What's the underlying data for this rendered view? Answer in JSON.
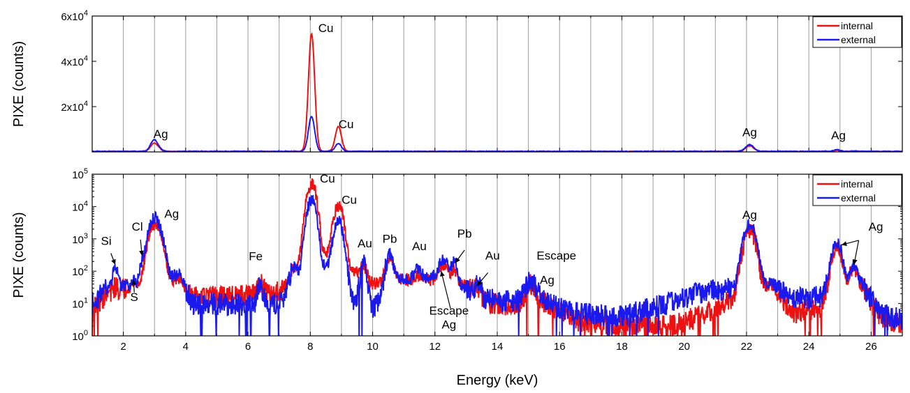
{
  "chart_data": [
    {
      "type": "line",
      "scale": "linear",
      "ylabel": "PIXE (counts)",
      "xlim": [
        1,
        27
      ],
      "ylim": [
        0,
        60000
      ],
      "yticks": [
        {
          "value": 20000,
          "mant": "2x10",
          "exp": "4"
        },
        {
          "value": 40000,
          "mant": "4x10",
          "exp": "4"
        },
        {
          "value": 60000,
          "mant": "6x10",
          "exp": "4"
        }
      ],
      "grid": "vertical lines every 1 keV",
      "legend_position": "top-right",
      "series": [
        {
          "name": "internal",
          "color": "#ee1111",
          "peaks": [
            [
              2.98,
              3500,
              0.11
            ],
            [
              3.15,
              700,
              0.1
            ],
            [
              8.04,
              52000,
              0.1
            ],
            [
              8.9,
              11000,
              0.1
            ],
            [
              22.1,
              2500,
              0.13
            ],
            [
              24.9,
              450,
              0.1
            ],
            [
              25.45,
              100,
              0.1
            ]
          ]
        },
        {
          "name": "external",
          "color": "#1a1aee",
          "peaks": [
            [
              2.98,
              5000,
              0.11
            ],
            [
              3.15,
              900,
              0.1
            ],
            [
              8.04,
              15500,
              0.1
            ],
            [
              8.9,
              3500,
              0.1
            ],
            [
              22.1,
              3000,
              0.13
            ],
            [
              24.9,
              750,
              0.1
            ],
            [
              25.45,
              140,
              0.1
            ]
          ]
        }
      ],
      "annotations": [
        {
          "text": "Cu",
          "x": 8.5,
          "y": 53000
        },
        {
          "text": "Cu",
          "x": 9.15,
          "y": 10500
        },
        {
          "text": "Ag",
          "x": 3.2,
          "y": 6200
        },
        {
          "text": "Ag",
          "x": 22.1,
          "y": 7000
        },
        {
          "text": "Ag",
          "x": 24.95,
          "y": 5500
        }
      ]
    },
    {
      "type": "line",
      "scale": "log",
      "xlabel": "Energy (keV)",
      "ylabel": "PIXE (counts)",
      "xlim": [
        1,
        27
      ],
      "ylim": [
        1,
        100000
      ],
      "xticks": [
        2,
        4,
        6,
        8,
        10,
        12,
        14,
        16,
        18,
        20,
        22,
        24,
        26
      ],
      "yticks": [
        {
          "value": 1,
          "mant": "10",
          "exp": "0"
        },
        {
          "value": 10,
          "mant": "10",
          "exp": "1"
        },
        {
          "value": 100,
          "mant": "10",
          "exp": "2"
        },
        {
          "value": 1000,
          "mant": "10",
          "exp": "3"
        },
        {
          "value": 10000,
          "mant": "10",
          "exp": "4"
        },
        {
          "value": 100000,
          "mant": "10",
          "exp": "5"
        }
      ],
      "grid": "vertical lines every 1 keV",
      "legend_position": "top-right",
      "series": [
        {
          "name": "internal",
          "color": "#ee1111",
          "baseline": [
            [
              1,
              8
            ],
            [
              1.5,
              20
            ],
            [
              2.3,
              35
            ],
            [
              2.9,
              40
            ],
            [
              3.8,
              60
            ],
            [
              4.2,
              15
            ],
            [
              6,
              17
            ],
            [
              6.9,
              22
            ],
            [
              7.3,
              40
            ],
            [
              7.7,
              180
            ],
            [
              8.6,
              400
            ],
            [
              9.3,
              120
            ],
            [
              10,
              40
            ],
            [
              10.8,
              60
            ],
            [
              11.5,
              50
            ],
            [
              12.3,
              60
            ],
            [
              13,
              35
            ],
            [
              13.6,
              12
            ],
            [
              14.3,
              8
            ],
            [
              15.5,
              10
            ],
            [
              16.5,
              3
            ],
            [
              18,
              2
            ],
            [
              19.5,
              2
            ],
            [
              20.5,
              4
            ],
            [
              21.3,
              10
            ],
            [
              22.8,
              40
            ],
            [
              23.5,
              5
            ],
            [
              24.4,
              8
            ],
            [
              24.7,
              30
            ],
            [
              25.7,
              30
            ],
            [
              26.3,
              4
            ],
            [
              27,
              2
            ]
          ],
          "peaks": [
            [
              1.74,
              10,
              0.06
            ],
            [
              2.31,
              8,
              0.05
            ],
            [
              2.62,
              15,
              0.07
            ],
            [
              2.98,
              2500,
              0.13
            ],
            [
              3.15,
              900,
              0.12
            ],
            [
              6.4,
              25,
              0.08
            ],
            [
              7.47,
              60,
              0.1
            ],
            [
              8.04,
              50000,
              0.11
            ],
            [
              8.9,
              10500,
              0.11
            ],
            [
              9.71,
              90,
              0.08
            ],
            [
              10.55,
              220,
              0.1
            ],
            [
              11.45,
              30,
              0.1
            ],
            [
              12.28,
              100,
              0.12
            ],
            [
              12.61,
              60,
              0.08
            ],
            [
              13.38,
              15,
              0.08
            ],
            [
              15.08,
              30,
              0.14
            ],
            [
              22.1,
              1900,
              0.14
            ],
            [
              24.9,
              500,
              0.12
            ],
            [
              25.45,
              90,
              0.1
            ]
          ]
        },
        {
          "name": "external",
          "color": "#1a1aee",
          "baseline": [
            [
              1,
              10
            ],
            [
              1.5,
              30
            ],
            [
              2.3,
              40
            ],
            [
              2.9,
              45
            ],
            [
              3.8,
              80
            ],
            [
              4.2,
              10
            ],
            [
              6,
              9
            ],
            [
              6.9,
              10
            ],
            [
              7.3,
              20
            ],
            [
              7.7,
              80
            ],
            [
              8.6,
              150
            ],
            [
              9.3,
              15
            ],
            [
              10,
              6
            ],
            [
              10.8,
              60
            ],
            [
              11.5,
              60
            ],
            [
              12.3,
              80
            ],
            [
              13,
              30
            ],
            [
              13.6,
              14
            ],
            [
              14.3,
              12
            ],
            [
              15.5,
              12
            ],
            [
              16.5,
              5
            ],
            [
              18,
              4
            ],
            [
              19.5,
              10
            ],
            [
              20.5,
              22
            ],
            [
              21.3,
              28
            ],
            [
              22.8,
              45
            ],
            [
              23.5,
              14
            ],
            [
              24.4,
              16
            ],
            [
              24.7,
              50
            ],
            [
              25.7,
              40
            ],
            [
              26.3,
              5
            ],
            [
              27,
              3
            ]
          ],
          "peaks": [
            [
              1.74,
              110,
              0.06
            ],
            [
              2.31,
              12,
              0.05
            ],
            [
              2.62,
              150,
              0.07
            ],
            [
              2.98,
              3800,
              0.13
            ],
            [
              3.15,
              1200,
              0.12
            ],
            [
              6.4,
              25,
              0.08
            ],
            [
              7.47,
              100,
              0.1
            ],
            [
              8.04,
              15000,
              0.11
            ],
            [
              8.9,
              3500,
              0.11
            ],
            [
              9.71,
              160,
              0.08
            ],
            [
              10.55,
              240,
              0.1
            ],
            [
              11.45,
              50,
              0.1
            ],
            [
              12.28,
              150,
              0.12
            ],
            [
              12.61,
              130,
              0.08
            ],
            [
              13.38,
              20,
              0.08
            ],
            [
              15.08,
              40,
              0.14
            ],
            [
              22.1,
              2800,
              0.14
            ],
            [
              24.9,
              700,
              0.12
            ],
            [
              25.45,
              110,
              0.1
            ]
          ]
        }
      ],
      "annotations": [
        {
          "text": "Si",
          "x": 1.45,
          "y": 650
        },
        {
          "text": "Cl",
          "x": 2.45,
          "y": 1800
        },
        {
          "text": "S",
          "x": 2.35,
          "y": 12
        },
        {
          "text": "Ag",
          "x": 3.55,
          "y": 4500
        },
        {
          "text": "Fe",
          "x": 6.25,
          "y": 220
        },
        {
          "text": "Cu",
          "x": 8.55,
          "y": 55000
        },
        {
          "text": "Cu",
          "x": 9.25,
          "y": 12000
        },
        {
          "text": "Au",
          "x": 9.75,
          "y": 550
        },
        {
          "text": "Pb",
          "x": 10.55,
          "y": 750
        },
        {
          "text": "Au",
          "x": 11.5,
          "y": 450
        },
        {
          "text": "Pb",
          "x": 12.95,
          "y": 1100
        },
        {
          "text": "Au",
          "x": 13.85,
          "y": 230
        },
        {
          "text": "Escape",
          "x": 12.45,
          "y": 4.5
        },
        {
          "text": "Ag",
          "x": 12.45,
          "y": 1.7
        },
        {
          "text": "Escape",
          "x": 15.9,
          "y": 230
        },
        {
          "text": "Ag",
          "x": 15.6,
          "y": 40
        },
        {
          "text": "Ag",
          "x": 22.1,
          "y": 4200
        },
        {
          "text": "Ag",
          "x": 26.15,
          "y": 1800
        }
      ],
      "arrows": [
        {
          "from": [
            1.6,
            360
          ],
          "to": [
            1.74,
            160
          ]
        },
        {
          "from": [
            2.55,
            950
          ],
          "to": [
            2.6,
            300
          ]
        },
        {
          "from": [
            2.35,
            22
          ],
          "to": [
            2.33,
            55
          ]
        },
        {
          "from": [
            12.5,
            7
          ],
          "to": [
            12.2,
            100
          ]
        },
        {
          "from": [
            12.95,
            450
          ],
          "to": [
            12.65,
            180
          ]
        },
        {
          "from": [
            13.7,
            90
          ],
          "to": [
            13.35,
            35
          ]
        },
        {
          "from": [
            25.6,
            900
          ],
          "to": [
            25.05,
            650
          ]
        },
        {
          "from": [
            25.6,
            900
          ],
          "to": [
            25.45,
            160
          ]
        }
      ]
    }
  ]
}
